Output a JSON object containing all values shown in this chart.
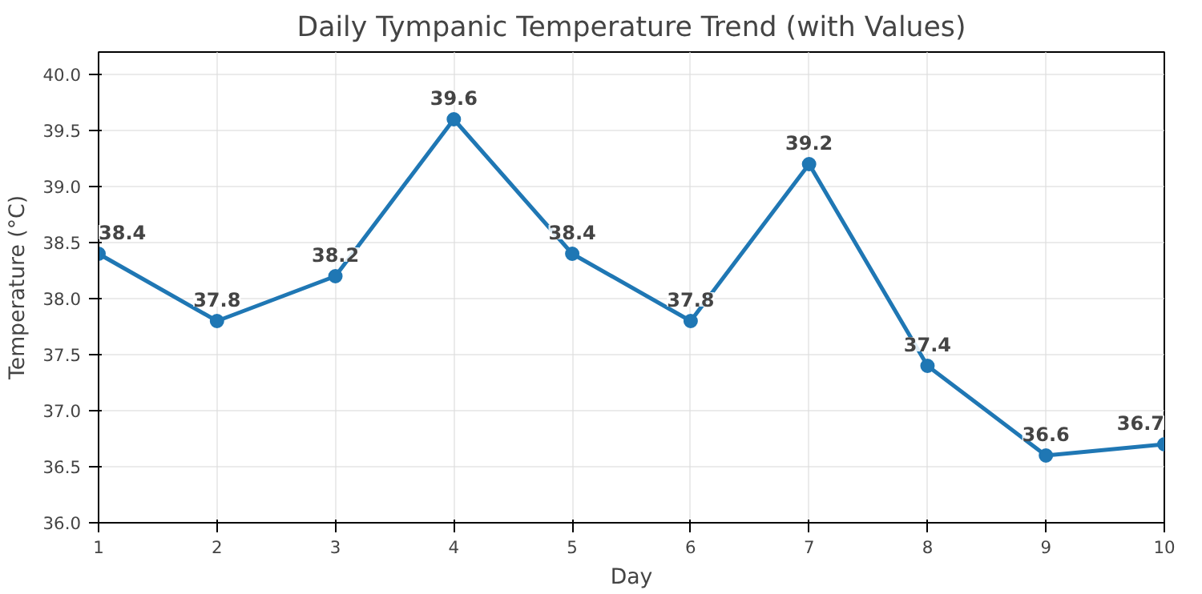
{
  "chart_data": {
    "type": "line",
    "title": "Daily Tympanic Temperature Trend (with Values)",
    "xlabel": "Day",
    "ylabel": "Temperature (°C)",
    "x": [
      1,
      2,
      3,
      4,
      5,
      6,
      7,
      8,
      9,
      10
    ],
    "series": [
      {
        "color": "#1f77b4",
        "values": [
          38.4,
          37.8,
          38.2,
          39.6,
          38.4,
          37.8,
          39.2,
          37.4,
          36.6,
          36.7
        ]
      }
    ],
    "xlim": [
      1,
      10
    ],
    "xticks": [
      1,
      2,
      3,
      4,
      5,
      6,
      7,
      8,
      9,
      10
    ],
    "ylim": [
      36.0,
      40.2
    ],
    "yticks": [
      {
        "value": 36.0,
        "label": "36.0"
      },
      {
        "value": 36.5,
        "label": "36.5"
      },
      {
        "value": 37.0,
        "label": "37.0"
      },
      {
        "value": 37.5,
        "label": "37.5"
      },
      {
        "value": 38.0,
        "label": "38.0"
      },
      {
        "value": 38.5,
        "label": "38.5"
      },
      {
        "value": 39.0,
        "label": "39.0"
      },
      {
        "value": 39.5,
        "label": "39.5"
      },
      {
        "value": 40.0,
        "label": "40.0"
      }
    ],
    "grid": true,
    "marker": "circle",
    "line_style": "solid",
    "data_labels": true
  }
}
